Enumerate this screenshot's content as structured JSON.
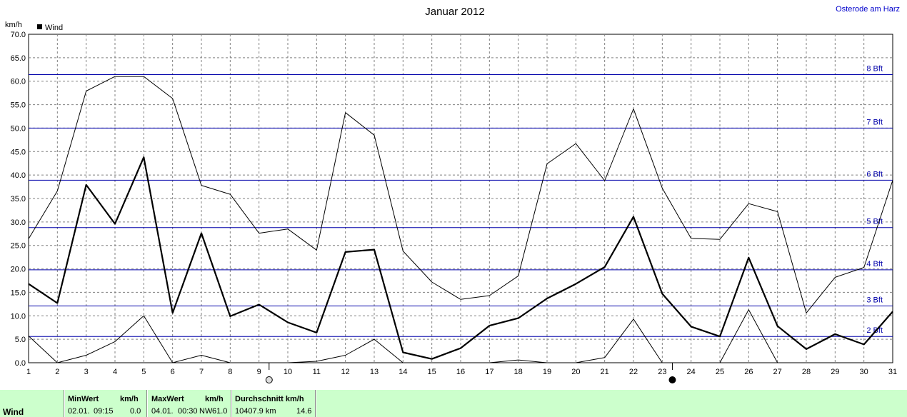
{
  "chart_data": {
    "type": "line",
    "title": "Januar 2012",
    "location": "Osterode am Harz",
    "ylabel": "km/h",
    "legend": "Wind",
    "ylim": [
      0,
      70
    ],
    "yticks": [
      "0.0",
      "5.0",
      "10.0",
      "15.0",
      "20.0",
      "25.0",
      "30.0",
      "35.0",
      "40.0",
      "45.0",
      "50.0",
      "55.0",
      "60.0",
      "65.0",
      "70.0"
    ],
    "x": [
      1,
      2,
      3,
      4,
      5,
      6,
      7,
      8,
      9,
      10,
      11,
      12,
      13,
      14,
      15,
      16,
      17,
      18,
      19,
      20,
      21,
      22,
      23,
      24,
      25,
      26,
      27,
      28,
      29,
      30,
      31
    ],
    "xlabels": [
      "1",
      "2",
      "3",
      "4",
      "5",
      "6",
      "7",
      "8",
      "9",
      "10",
      "11",
      "12",
      "13",
      "14",
      "15",
      "16",
      "17",
      "18",
      "19",
      "20",
      "21",
      "22",
      "23",
      "24",
      "25",
      "26",
      "27",
      "28",
      "29",
      "30",
      "31"
    ],
    "series": [
      {
        "name": "Wind",
        "role": "avg",
        "values": [
          16.8,
          12.7,
          37.9,
          29.6,
          43.8,
          10.6,
          27.6,
          9.9,
          12.4,
          8.6,
          6.4,
          23.6,
          24.1,
          2.2,
          0.8,
          3.1,
          7.9,
          9.5,
          13.7,
          16.8,
          20.4,
          31.1,
          14.7,
          7.7,
          5.6,
          22.4,
          7.8,
          2.9,
          6.1,
          3.9,
          10.9
        ]
      },
      {
        "role": "max",
        "values": [
          26.4,
          36.6,
          57.9,
          61.0,
          61.0,
          56.3,
          37.8,
          35.9,
          27.6,
          28.5,
          24.0,
          53.3,
          48.5,
          23.8,
          17.2,
          13.5,
          14.3,
          18.5,
          42.4,
          46.7,
          38.8,
          54.1,
          37.2,
          26.5,
          26.3,
          33.9,
          32.2,
          10.6,
          18.2,
          20.3,
          38.9
        ]
      },
      {
        "role": "min",
        "values": [
          5.7,
          0.0,
          1.6,
          4.5,
          10.0,
          0.0,
          1.6,
          0.0,
          null,
          0.0,
          0.3,
          1.6,
          5.0,
          0.0,
          null,
          null,
          0.0,
          0.6,
          0.0,
          0.0,
          1.1,
          9.3,
          0.0,
          null,
          0.0,
          11.3,
          0.0,
          null,
          null,
          null,
          null
        ]
      }
    ],
    "beaufort_lines": [
      {
        "label": "2 Bft",
        "value": 5.6
      },
      {
        "label": "3 Bft",
        "value": 12.1
      },
      {
        "label": "4 Bft",
        "value": 19.8
      },
      {
        "label": "5 Bft",
        "value": 28.8
      },
      {
        "label": "6 Bft",
        "value": 38.9
      },
      {
        "label": "7 Bft",
        "value": 50.0
      },
      {
        "label": "8 Bft",
        "value": 61.4
      }
    ],
    "moon_phases": [
      {
        "day": 9,
        "phase": "full"
      },
      {
        "day": 23,
        "phase": "new"
      }
    ],
    "grid": true,
    "legend_position": "top-left",
    "colors": {
      "beaufort": "#0000aa",
      "lines": "#000000",
      "grid": "#808080",
      "stats_bg": "#ccffcc"
    }
  },
  "stats": {
    "row_label": "Wind",
    "min_header": "MinWert",
    "min_unit": "km/h",
    "min_date": "02.01.",
    "min_time": "09:15",
    "min_value": "0.0",
    "max_header": "MaxWert",
    "max_unit": "km/h",
    "max_date": "04.01.",
    "max_time": "00:30",
    "max_dir": "NW",
    "max_value": "61.0",
    "avg_header": "Durchschnitt km/h",
    "avg_distance": "10407.9 km",
    "avg_value": "14.6"
  }
}
